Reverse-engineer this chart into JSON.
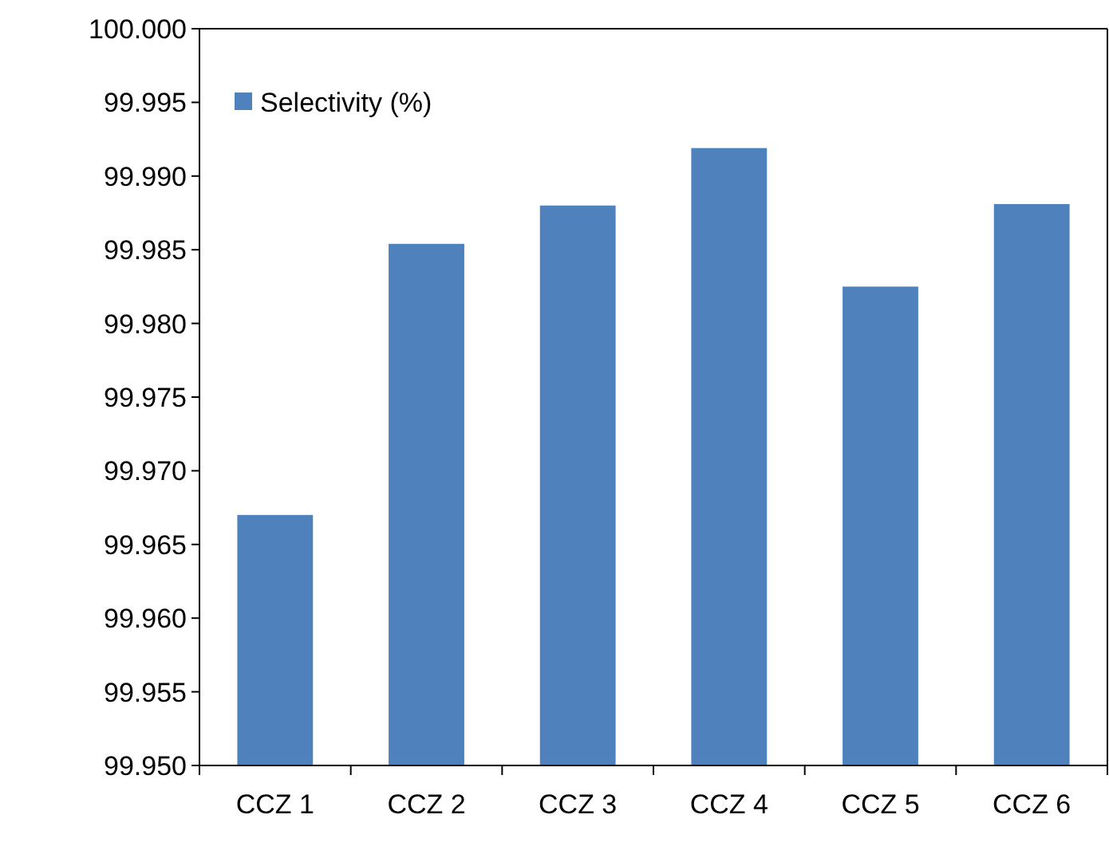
{
  "chart_data": {
    "type": "bar",
    "categories": [
      "CCZ 1",
      "CCZ 2",
      "CCZ 3",
      "CCZ 4",
      "CCZ 5",
      "CCZ 6"
    ],
    "series": [
      {
        "name": "Selectivity (%)",
        "color": "#4f81bd",
        "values": [
          99.967,
          99.9854,
          99.988,
          99.9919,
          99.9825,
          99.9881
        ]
      }
    ],
    "ylim": [
      99.95,
      100
    ],
    "yticks": [
      {
        "value": 99.95,
        "label": "99.950"
      },
      {
        "value": 99.955,
        "label": "99.955"
      },
      {
        "value": 99.96,
        "label": "99.960"
      },
      {
        "value": 99.965,
        "label": "99.965"
      },
      {
        "value": 99.97,
        "label": "99.970"
      },
      {
        "value": 99.975,
        "label": "99.975"
      },
      {
        "value": 99.98,
        "label": "99.980"
      },
      {
        "value": 99.985,
        "label": "99.985"
      },
      {
        "value": 99.99,
        "label": "99.990"
      },
      {
        "value": 99.995,
        "label": "99.995"
      },
      {
        "value": 100,
        "label": "100.000"
      }
    ],
    "grid": false,
    "legend": "top left"
  }
}
